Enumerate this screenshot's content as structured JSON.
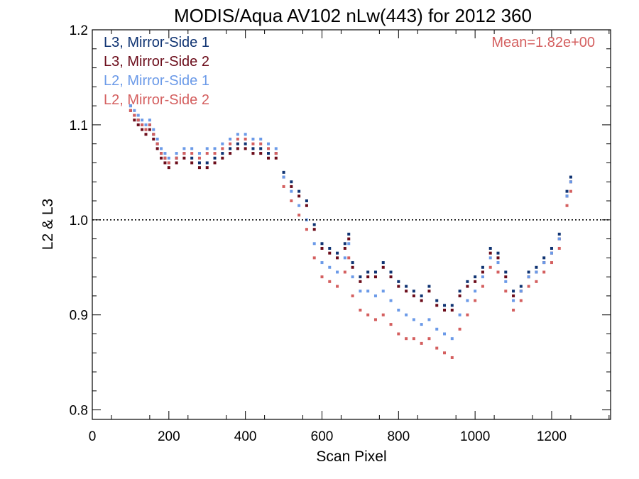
{
  "chart_data": {
    "type": "scatter",
    "title": "MODIS/Aqua AV102 nLw(443) for 2012 360",
    "xlabel": "Scan Pixel",
    "ylabel": "L2 & L3",
    "xlim": [
      0,
      1354
    ],
    "ylim": [
      0.79,
      1.2
    ],
    "xticks": [
      0,
      200,
      400,
      600,
      800,
      1000,
      1200
    ],
    "yticks": [
      0.8,
      0.9,
      1.0,
      1.1,
      1.2
    ],
    "xtick_labels": [
      "0",
      "200",
      "400",
      "600",
      "800",
      "1000",
      "1200"
    ],
    "ytick_labels": [
      "0.8",
      "0.9",
      "1.0",
      "1.1",
      "1.2"
    ],
    "reference_line": {
      "y": 1.0,
      "style": "dotted"
    },
    "annotation": {
      "text": "Mean=1.82e+00",
      "color": "#d45f5f"
    },
    "legend_placement": "top-left",
    "grid": false,
    "series": [
      {
        "name": "L3, Mirror-Side 1",
        "color": "#0f3372",
        "points": [
          [
            100,
            1.12
          ],
          [
            110,
            1.11
          ],
          [
            120,
            1.105
          ],
          [
            130,
            1.1
          ],
          [
            140,
            1.095
          ],
          [
            150,
            1.1
          ],
          [
            160,
            1.09
          ],
          [
            170,
            1.08
          ],
          [
            180,
            1.07
          ],
          [
            190,
            1.065
          ],
          [
            200,
            1.06
          ],
          [
            220,
            1.065
          ],
          [
            240,
            1.07
          ],
          [
            260,
            1.065
          ],
          [
            280,
            1.06
          ],
          [
            300,
            1.06
          ],
          [
            320,
            1.065
          ],
          [
            340,
            1.07
          ],
          [
            360,
            1.075
          ],
          [
            380,
            1.08
          ],
          [
            400,
            1.08
          ],
          [
            420,
            1.075
          ],
          [
            440,
            1.075
          ],
          [
            460,
            1.07
          ],
          [
            480,
            1.07
          ],
          [
            500,
            1.05
          ],
          [
            520,
            1.04
          ],
          [
            540,
            1.03
          ],
          [
            560,
            1.02
          ],
          [
            580,
            0.995
          ],
          [
            600,
            0.975
          ],
          [
            620,
            0.97
          ],
          [
            640,
            0.965
          ],
          [
            660,
            0.975
          ],
          [
            670,
            0.985
          ],
          [
            680,
            0.955
          ],
          [
            700,
            0.94
          ],
          [
            720,
            0.945
          ],
          [
            740,
            0.945
          ],
          [
            760,
            0.955
          ],
          [
            780,
            0.945
          ],
          [
            800,
            0.935
          ],
          [
            820,
            0.93
          ],
          [
            840,
            0.925
          ],
          [
            860,
            0.92
          ],
          [
            880,
            0.93
          ],
          [
            900,
            0.915
          ],
          [
            920,
            0.91
          ],
          [
            940,
            0.91
          ],
          [
            960,
            0.925
          ],
          [
            980,
            0.935
          ],
          [
            1000,
            0.94
          ],
          [
            1020,
            0.95
          ],
          [
            1040,
            0.97
          ],
          [
            1060,
            0.965
          ],
          [
            1080,
            0.945
          ],
          [
            1100,
            0.925
          ],
          [
            1120,
            0.93
          ],
          [
            1140,
            0.945
          ],
          [
            1160,
            0.95
          ],
          [
            1180,
            0.96
          ],
          [
            1200,
            0.97
          ],
          [
            1220,
            0.985
          ],
          [
            1240,
            1.03
          ],
          [
            1250,
            1.045
          ]
        ]
      },
      {
        "name": "L3, Mirror-Side 2",
        "color": "#6b0c1a",
        "points": [
          [
            100,
            1.115
          ],
          [
            110,
            1.105
          ],
          [
            120,
            1.1
          ],
          [
            130,
            1.095
          ],
          [
            140,
            1.09
          ],
          [
            150,
            1.095
          ],
          [
            160,
            1.085
          ],
          [
            170,
            1.075
          ],
          [
            180,
            1.065
          ],
          [
            190,
            1.06
          ],
          [
            200,
            1.055
          ],
          [
            220,
            1.06
          ],
          [
            240,
            1.065
          ],
          [
            260,
            1.06
          ],
          [
            280,
            1.055
          ],
          [
            300,
            1.055
          ],
          [
            320,
            1.06
          ],
          [
            340,
            1.065
          ],
          [
            360,
            1.07
          ],
          [
            380,
            1.075
          ],
          [
            400,
            1.075
          ],
          [
            420,
            1.07
          ],
          [
            440,
            1.07
          ],
          [
            460,
            1.065
          ],
          [
            480,
            1.065
          ],
          [
            500,
            1.045
          ],
          [
            520,
            1.035
          ],
          [
            540,
            1.025
          ],
          [
            560,
            1.015
          ],
          [
            580,
            0.99
          ],
          [
            600,
            0.97
          ],
          [
            620,
            0.965
          ],
          [
            640,
            0.96
          ],
          [
            660,
            0.97
          ],
          [
            670,
            0.98
          ],
          [
            680,
            0.95
          ],
          [
            700,
            0.935
          ],
          [
            720,
            0.94
          ],
          [
            740,
            0.94
          ],
          [
            760,
            0.95
          ],
          [
            780,
            0.94
          ],
          [
            800,
            0.93
          ],
          [
            820,
            0.925
          ],
          [
            840,
            0.92
          ],
          [
            860,
            0.915
          ],
          [
            880,
            0.925
          ],
          [
            900,
            0.91
          ],
          [
            920,
            0.905
          ],
          [
            940,
            0.905
          ],
          [
            960,
            0.92
          ],
          [
            980,
            0.93
          ],
          [
            1000,
            0.935
          ],
          [
            1020,
            0.945
          ],
          [
            1040,
            0.965
          ],
          [
            1060,
            0.96
          ],
          [
            1080,
            0.94
          ],
          [
            1100,
            0.92
          ],
          [
            1120,
            0.925
          ],
          [
            1140,
            0.94
          ],
          [
            1160,
            0.945
          ],
          [
            1180,
            0.955
          ],
          [
            1200,
            0.965
          ],
          [
            1220,
            0.98
          ],
          [
            1240,
            1.025
          ],
          [
            1250,
            1.04
          ]
        ]
      },
      {
        "name": "L2, Mirror-Side 1",
        "color": "#6b9ae8",
        "points": [
          [
            100,
            1.12
          ],
          [
            110,
            1.115
          ],
          [
            120,
            1.11
          ],
          [
            130,
            1.105
          ],
          [
            140,
            1.1
          ],
          [
            150,
            1.105
          ],
          [
            160,
            1.095
          ],
          [
            170,
            1.085
          ],
          [
            180,
            1.075
          ],
          [
            190,
            1.07
          ],
          [
            200,
            1.065
          ],
          [
            220,
            1.07
          ],
          [
            240,
            1.075
          ],
          [
            260,
            1.075
          ],
          [
            280,
            1.07
          ],
          [
            300,
            1.075
          ],
          [
            320,
            1.075
          ],
          [
            340,
            1.08
          ],
          [
            360,
            1.085
          ],
          [
            380,
            1.09
          ],
          [
            400,
            1.09
          ],
          [
            420,
            1.085
          ],
          [
            440,
            1.085
          ],
          [
            460,
            1.08
          ],
          [
            480,
            1.075
          ],
          [
            500,
            1.045
          ],
          [
            520,
            1.03
          ],
          [
            540,
            1.015
          ],
          [
            560,
            1.0
          ],
          [
            580,
            0.975
          ],
          [
            600,
            0.955
          ],
          [
            620,
            0.95
          ],
          [
            640,
            0.945
          ],
          [
            660,
            0.96
          ],
          [
            670,
            0.975
          ],
          [
            680,
            0.94
          ],
          [
            700,
            0.925
          ],
          [
            720,
            0.925
          ],
          [
            740,
            0.92
          ],
          [
            760,
            0.925
          ],
          [
            780,
            0.915
          ],
          [
            800,
            0.905
          ],
          [
            820,
            0.9
          ],
          [
            840,
            0.895
          ],
          [
            860,
            0.89
          ],
          [
            880,
            0.895
          ],
          [
            900,
            0.885
          ],
          [
            920,
            0.88
          ],
          [
            940,
            0.875
          ],
          [
            960,
            0.9
          ],
          [
            980,
            0.915
          ],
          [
            1000,
            0.925
          ],
          [
            1020,
            0.94
          ],
          [
            1040,
            0.96
          ],
          [
            1060,
            0.955
          ],
          [
            1080,
            0.935
          ],
          [
            1100,
            0.915
          ],
          [
            1120,
            0.925
          ],
          [
            1140,
            0.94
          ],
          [
            1160,
            0.945
          ],
          [
            1180,
            0.955
          ],
          [
            1200,
            0.965
          ],
          [
            1220,
            0.98
          ],
          [
            1240,
            1.025
          ],
          [
            1250,
            1.04
          ]
        ]
      },
      {
        "name": "L2, Mirror-Side 2",
        "color": "#d45f5f",
        "points": [
          [
            100,
            1.115
          ],
          [
            110,
            1.11
          ],
          [
            120,
            1.105
          ],
          [
            130,
            1.1
          ],
          [
            140,
            1.095
          ],
          [
            150,
            1.1
          ],
          [
            160,
            1.09
          ],
          [
            170,
            1.08
          ],
          [
            180,
            1.07
          ],
          [
            190,
            1.065
          ],
          [
            200,
            1.06
          ],
          [
            220,
            1.065
          ],
          [
            240,
            1.07
          ],
          [
            260,
            1.07
          ],
          [
            280,
            1.065
          ],
          [
            300,
            1.07
          ],
          [
            320,
            1.07
          ],
          [
            340,
            1.075
          ],
          [
            360,
            1.08
          ],
          [
            380,
            1.085
          ],
          [
            400,
            1.085
          ],
          [
            420,
            1.08
          ],
          [
            440,
            1.08
          ],
          [
            460,
            1.075
          ],
          [
            480,
            1.07
          ],
          [
            500,
            1.035
          ],
          [
            520,
            1.02
          ],
          [
            540,
            1.005
          ],
          [
            560,
            0.99
          ],
          [
            580,
            0.96
          ],
          [
            600,
            0.94
          ],
          [
            620,
            0.935
          ],
          [
            640,
            0.93
          ],
          [
            660,
            0.945
          ],
          [
            670,
            0.96
          ],
          [
            680,
            0.92
          ],
          [
            700,
            0.905
          ],
          [
            720,
            0.9
          ],
          [
            740,
            0.895
          ],
          [
            760,
            0.9
          ],
          [
            780,
            0.89
          ],
          [
            800,
            0.88
          ],
          [
            820,
            0.875
          ],
          [
            840,
            0.875
          ],
          [
            860,
            0.87
          ],
          [
            880,
            0.875
          ],
          [
            900,
            0.865
          ],
          [
            920,
            0.86
          ],
          [
            940,
            0.855
          ],
          [
            960,
            0.885
          ],
          [
            980,
            0.9
          ],
          [
            1000,
            0.915
          ],
          [
            1020,
            0.93
          ],
          [
            1040,
            0.95
          ],
          [
            1060,
            0.945
          ],
          [
            1080,
            0.925
          ],
          [
            1100,
            0.905
          ],
          [
            1120,
            0.915
          ],
          [
            1140,
            0.93
          ],
          [
            1160,
            0.935
          ],
          [
            1180,
            0.945
          ],
          [
            1200,
            0.955
          ],
          [
            1220,
            0.97
          ],
          [
            1240,
            1.015
          ],
          [
            1250,
            1.03
          ]
        ]
      }
    ]
  }
}
